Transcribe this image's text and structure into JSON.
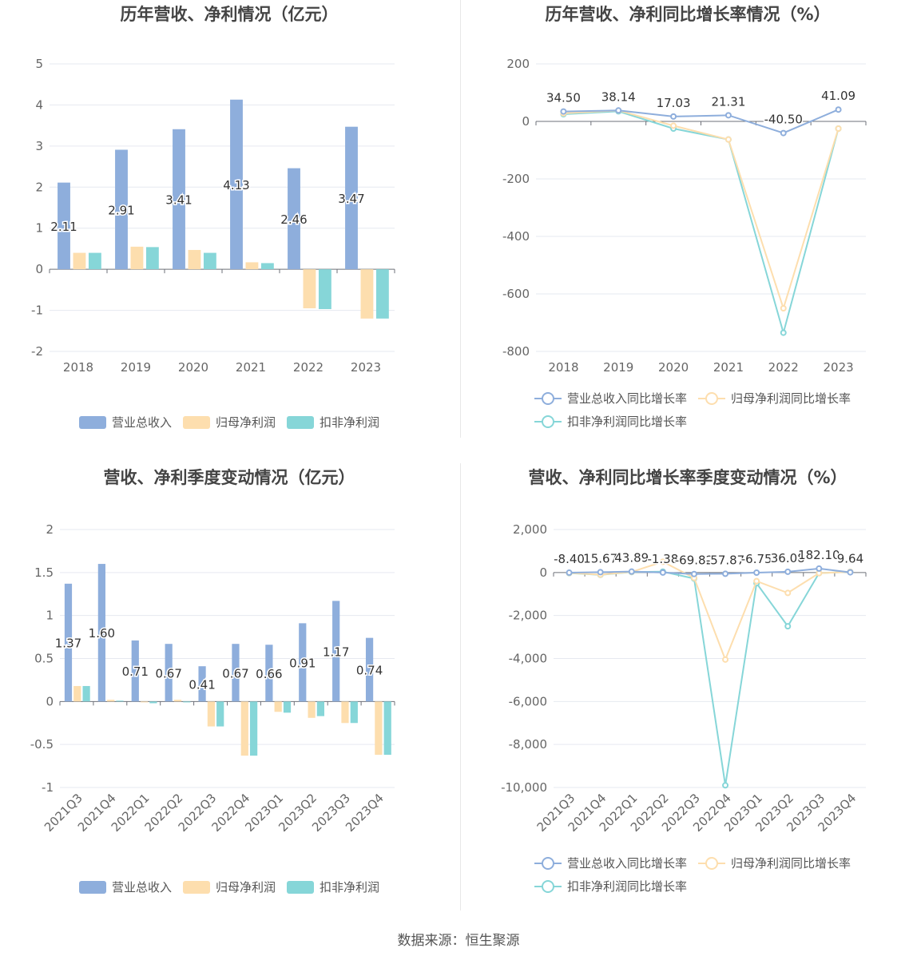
{
  "colors": {
    "revenue": "#8eaedc",
    "net_profit": "#fddeae",
    "deducted_profit": "#86d6d8"
  },
  "source": "数据来源：恒生聚源",
  "chart_data": [
    {
      "type": "bar",
      "title": "历年营收、净利情况（亿元）",
      "categories": [
        "2018",
        "2019",
        "2020",
        "2021",
        "2022",
        "2023"
      ],
      "ylim": [
        -2,
        5
      ],
      "yticks": [
        "5",
        "4",
        "3",
        "2",
        "1",
        "0",
        "-1",
        "-2"
      ],
      "ytick_values": [
        5,
        4,
        3,
        2,
        1,
        0,
        -1,
        -2
      ],
      "legend": "bottom-center",
      "series": [
        {
          "name": "营业总收入",
          "values": [
            2.11,
            2.91,
            3.41,
            4.13,
            2.46,
            3.47
          ],
          "labels": [
            "2.11",
            "2.91",
            "3.41",
            "4.13",
            "2.46",
            "3.47"
          ]
        },
        {
          "name": "归母净利润",
          "values": [
            0.4,
            0.55,
            0.47,
            0.17,
            -0.95,
            -1.2
          ]
        },
        {
          "name": "扣非净利润",
          "values": [
            0.4,
            0.54,
            0.4,
            0.15,
            -0.97,
            -1.2
          ]
        }
      ]
    },
    {
      "type": "line",
      "title": "历年营收、净利同比增长率情况（%）",
      "categories": [
        "2018",
        "2019",
        "2020",
        "2021",
        "2022",
        "2023"
      ],
      "ylim": [
        -800,
        200
      ],
      "yticks": [
        "200",
        "0",
        "-200",
        "-400",
        "-600",
        "-800"
      ],
      "ytick_values": [
        200,
        0,
        -200,
        -400,
        -600,
        -800
      ],
      "legend": "bottom-center",
      "series": [
        {
          "name": "营业总收入同比增长率",
          "values": [
            34.5,
            38.14,
            17.03,
            21.31,
            -40.5,
            41.09
          ],
          "labels": [
            "34.50",
            "38.14",
            "17.03",
            "21.31",
            "-40.50",
            "41.09"
          ]
        },
        {
          "name": "归母净利润同比增长率",
          "values": [
            28,
            38,
            -15,
            -63,
            -650,
            -25
          ]
        },
        {
          "name": "扣非净利润同比增长率",
          "values": [
            25,
            35,
            -25,
            -63,
            -735,
            -25
          ]
        }
      ]
    },
    {
      "type": "bar",
      "title": "营收、净利季度变动情况（亿元）",
      "categories": [
        "2021Q3",
        "2021Q4",
        "2022Q1",
        "2022Q2",
        "2022Q3",
        "2022Q4",
        "2023Q1",
        "2023Q2",
        "2023Q3",
        "2023Q4"
      ],
      "ylim": [
        -1,
        2
      ],
      "yticks": [
        "2",
        "1.5",
        "1",
        "0.5",
        "0",
        "-0.5",
        "-1"
      ],
      "ytick_values": [
        2,
        1.5,
        1,
        0.5,
        0,
        -0.5,
        -1
      ],
      "legend": "bottom-center",
      "series": [
        {
          "name": "营业总收入",
          "values": [
            1.37,
            1.6,
            0.71,
            0.67,
            0.41,
            0.67,
            0.66,
            0.91,
            1.17,
            0.74
          ],
          "labels": [
            "1.37",
            "1.60",
            "0.71",
            "0.67",
            "0.41",
            "0.67",
            "0.66",
            "0.91",
            "1.17",
            "0.74"
          ]
        },
        {
          "name": "归母净利润",
          "values": [
            0.18,
            0.02,
            -0.01,
            0.02,
            -0.29,
            -0.63,
            -0.12,
            -0.19,
            -0.25,
            -0.62
          ]
        },
        {
          "name": "扣非净利润",
          "values": [
            0.18,
            0.01,
            -0.02,
            -0.01,
            -0.29,
            -0.63,
            -0.13,
            -0.17,
            -0.25,
            -0.62
          ]
        }
      ]
    },
    {
      "type": "line",
      "title": "营收、净利同比增长率季度变动情况（%）",
      "categories": [
        "2021Q3",
        "2021Q4",
        "2022Q1",
        "2022Q2",
        "2022Q3",
        "2022Q4",
        "2023Q1",
        "2023Q2",
        "2023Q3",
        "2023Q4"
      ],
      "ylim": [
        -10000,
        2000
      ],
      "yticks": [
        "2,000",
        "0",
        "-2,000",
        "-4,000",
        "-6,000",
        "-8,000",
        "-10,000"
      ],
      "ytick_values": [
        2000,
        0,
        -2000,
        -4000,
        -6000,
        -8000,
        -10000
      ],
      "legend": "bottom-center",
      "series": [
        {
          "name": "营业总收入同比增长率",
          "values": [
            -8.4,
            15.67,
            43.89,
            -1.38,
            -69.82,
            -57.87,
            -6.75,
            36.08,
            182.1,
            9.64
          ],
          "labels": [
            "-8.40",
            "15.67",
            "43.89",
            "-1.38",
            "-69.82",
            "-57.87",
            "-6.75",
            "36.08",
            "182.10",
            "9.64"
          ]
        },
        {
          "name": "归母净利润同比增长率",
          "values": [
            -20,
            -100,
            30,
            500,
            -250,
            -4050,
            -400,
            -950,
            -30,
            30
          ]
        },
        {
          "name": "扣非净利润同比增长率",
          "values": [
            -30,
            -110,
            20,
            40,
            -280,
            -9900,
            -500,
            -2500,
            -30,
            30
          ]
        }
      ]
    }
  ]
}
